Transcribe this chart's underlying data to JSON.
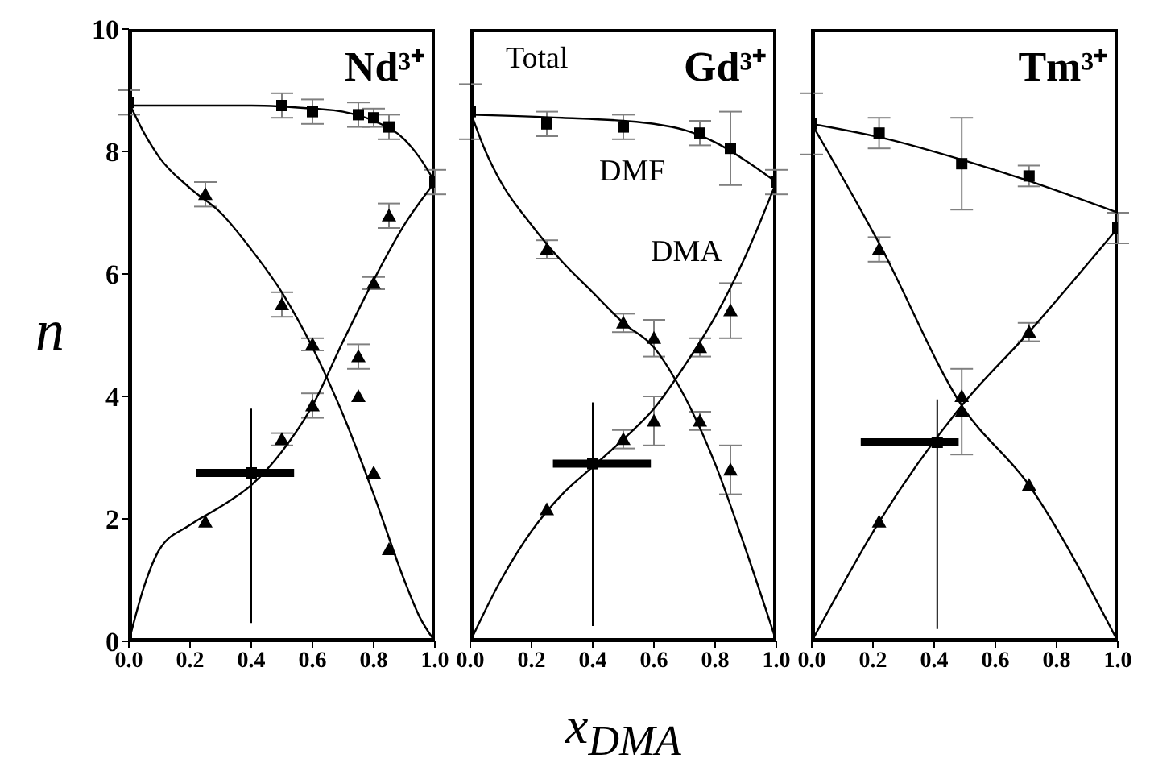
{
  "chart_data": [
    {
      "type": "scatter",
      "title": "Nd³⁺",
      "ylabel": "n",
      "xlim": [
        0,
        1
      ],
      "xticks": [
        {
          "value": 0,
          "label": "0.0"
        },
        {
          "value": 0.2,
          "label": "0.2"
        },
        {
          "value": 0.4,
          "label": "0.4"
        },
        {
          "value": 0.6,
          "label": "0.6"
        },
        {
          "value": 0.8,
          "label": "0.8"
        },
        {
          "value": 1,
          "label": "1.0"
        }
      ],
      "ylim": [
        0,
        10
      ],
      "yticks": [
        0,
        2,
        4,
        6,
        8,
        10
      ],
      "series": [
        {
          "color": "#000000",
          "marker": "square",
          "x": [
            0,
            0.5,
            0.6,
            0.75,
            0.8,
            0.85,
            1
          ],
          "values": [
            8.8,
            8.75,
            8.65,
            8.6,
            8.55,
            8.4,
            7.5
          ],
          "errors": [
            0.2,
            0.2,
            0.2,
            0.2,
            0.15,
            0.2,
            0.2
          ]
        },
        {
          "color": "#000000",
          "marker": "triangle",
          "x": [
            0.25,
            0.5,
            0.6,
            0.75,
            0.8,
            0.85
          ],
          "values": [
            7.3,
            5.5,
            4.85,
            4.0,
            2.75,
            1.5
          ],
          "errors": [
            0.2,
            0.2,
            0.1,
            null,
            null,
            null
          ]
        },
        {
          "color": "#000000",
          "marker": "triangle",
          "x": [
            0.25,
            0.5,
            0.6,
            0.75,
            0.8,
            0.85
          ],
          "values": [
            1.95,
            3.3,
            3.85,
            4.65,
            5.85,
            6.95
          ],
          "errors": [
            null,
            0.1,
            0.2,
            0.2,
            0.1,
            0.2
          ]
        },
        {
          "type": "line",
          "color": "#000000",
          "marker": "none",
          "x": [
            0,
            0.2,
            0.4,
            0.6,
            0.7,
            0.8,
            0.9,
            0.95,
            1
          ],
          "values": [
            8.75,
            8.75,
            8.75,
            8.7,
            8.65,
            8.5,
            8.2,
            7.9,
            7.5
          ]
        },
        {
          "type": "line",
          "color": "#000000",
          "marker": "none",
          "x": [
            0,
            0.05,
            0.1,
            0.2,
            0.3,
            0.4,
            0.5,
            0.6,
            0.7,
            0.8,
            0.9,
            0.95,
            1
          ],
          "values": [
            8.8,
            8.3,
            7.9,
            7.4,
            7.0,
            6.4,
            5.7,
            4.8,
            3.7,
            2.4,
            1.0,
            0.4,
            0
          ]
        },
        {
          "type": "line",
          "color": "#000000",
          "marker": "none",
          "x": [
            0,
            0.05,
            0.1,
            0.2,
            0.3,
            0.4,
            0.5,
            0.6,
            0.7,
            0.8,
            0.9,
            1
          ],
          "values": [
            0,
            0.9,
            1.5,
            1.9,
            2.2,
            2.55,
            3.1,
            3.85,
            4.9,
            5.9,
            6.8,
            7.5
          ]
        },
        {
          "color": "#000000",
          "marker": "square",
          "x": [
            0.4
          ],
          "values": [
            2.75
          ],
          "xerrors": [
            [
              0.22,
              0.54
            ]
          ],
          "errors": [
            [
              0.3,
              3.8
            ]
          ]
        }
      ]
    },
    {
      "type": "scatter",
      "title": "Gd³⁺",
      "xlabel": "x$_{DMA}$",
      "tick_labels": "x",
      "xlim": [
        0,
        1
      ],
      "xticks": [
        {
          "value": 0,
          "label": "0.0"
        },
        {
          "value": 0.2,
          "label": "0.2"
        },
        {
          "value": 0.4,
          "label": "0.4"
        },
        {
          "value": 0.6,
          "label": "0.6"
        },
        {
          "value": 0.8,
          "label": "0.8"
        },
        {
          "value": 1,
          "label": "1.0"
        }
      ],
      "ylim": [
        0,
        10
      ],
      "yticks": [
        0,
        2,
        4,
        6,
        8,
        10
      ],
      "annotations": [
        "Total",
        "DMF",
        "DMA"
      ],
      "series": [
        {
          "color": "#000000",
          "marker": "square",
          "x": [
            0,
            0.25,
            0.5,
            0.75,
            0.85,
            1
          ],
          "values": [
            8.65,
            8.45,
            8.4,
            8.3,
            8.05,
            7.5
          ],
          "errors": [
            0.45,
            0.2,
            0.2,
            0.2,
            0.6,
            0.2
          ]
        },
        {
          "color": "#000000",
          "marker": "triangle",
          "x": [
            0.25,
            0.5,
            0.6,
            0.75,
            0.85
          ],
          "values": [
            6.4,
            5.2,
            4.95,
            3.6,
            2.8
          ],
          "errors": [
            0.15,
            0.15,
            0.3,
            0.15,
            0.4
          ]
        },
        {
          "color": "#000000",
          "marker": "triangle",
          "x": [
            0.25,
            0.5,
            0.6,
            0.75,
            0.85
          ],
          "values": [
            2.15,
            3.3,
            3.6,
            4.8,
            5.4
          ],
          "errors": [
            null,
            0.15,
            0.4,
            0.15,
            0.45
          ]
        },
        {
          "type": "line",
          "color": "#000000",
          "marker": "none",
          "x": [
            0,
            0.3,
            0.5,
            0.6,
            0.7,
            0.8,
            0.9,
            1
          ],
          "values": [
            8.6,
            8.55,
            8.5,
            8.45,
            8.35,
            8.15,
            7.85,
            7.5
          ]
        },
        {
          "type": "line",
          "color": "#000000",
          "marker": "none",
          "x": [
            0,
            0.05,
            0.1,
            0.2,
            0.3,
            0.4,
            0.5,
            0.6,
            0.7,
            0.8,
            0.9,
            1
          ],
          "values": [
            8.65,
            8.0,
            7.5,
            6.8,
            6.2,
            5.7,
            5.2,
            4.8,
            4.0,
            2.9,
            1.5,
            0
          ]
        },
        {
          "type": "line",
          "color": "#000000",
          "marker": "none",
          "x": [
            0,
            0.1,
            0.2,
            0.3,
            0.4,
            0.5,
            0.6,
            0.7,
            0.8,
            0.9,
            1
          ],
          "values": [
            0,
            1.0,
            1.8,
            2.4,
            2.85,
            3.3,
            3.8,
            4.5,
            5.3,
            6.3,
            7.5
          ]
        },
        {
          "color": "#000000",
          "marker": "square",
          "x": [
            0.4
          ],
          "values": [
            2.9
          ],
          "xerrors": [
            [
              0.27,
              0.59
            ]
          ],
          "errors": [
            [
              0.25,
              3.9
            ]
          ]
        }
      ]
    },
    {
      "type": "scatter",
      "title": "Tm³⁺",
      "tick_labels": "x",
      "xlim": [
        0,
        1
      ],
      "xticks": [
        {
          "value": 0,
          "label": "0.0"
        },
        {
          "value": 0.2,
          "label": "0.2"
        },
        {
          "value": 0.4,
          "label": "0.4"
        },
        {
          "value": 0.6,
          "label": "0.6"
        },
        {
          "value": 0.8,
          "label": "0.8"
        },
        {
          "value": 1,
          "label": "1.0"
        }
      ],
      "ylim": [
        0,
        10
      ],
      "yticks": [
        0,
        2,
        4,
        6,
        8,
        10
      ],
      "series": [
        {
          "color": "#000000",
          "marker": "square",
          "x": [
            0,
            0.22,
            0.49,
            0.71,
            1
          ],
          "values": [
            8.45,
            8.3,
            7.8,
            7.6,
            6.75
          ],
          "errors": [
            0.5,
            0.25,
            0.75,
            0.17,
            0.25
          ]
        },
        {
          "color": "#000000",
          "marker": "triangle",
          "x": [
            0.22,
            0.49,
            0.71
          ],
          "values": [
            6.4,
            4.0,
            2.55
          ],
          "errors": [
            0.2,
            null,
            null
          ]
        },
        {
          "color": "#000000",
          "marker": "triangle",
          "x": [
            0.22,
            0.49,
            0.71
          ],
          "values": [
            1.95,
            3.75,
            5.05
          ],
          "errors": [
            null,
            0.7,
            0.15
          ]
        },
        {
          "type": "line",
          "color": "#000000",
          "marker": "none",
          "x": [
            0,
            0.25,
            0.5,
            0.75,
            1
          ],
          "values": [
            8.45,
            8.2,
            7.85,
            7.45,
            7.0
          ]
        },
        {
          "type": "line",
          "color": "#000000",
          "marker": "none",
          "x": [
            0,
            0.22,
            0.49,
            0.71,
            1
          ],
          "values": [
            8.45,
            6.5,
            3.85,
            2.55,
            0
          ]
        },
        {
          "type": "line",
          "color": "#000000",
          "marker": "none",
          "x": [
            0,
            0.22,
            0.49,
            0.71,
            1
          ],
          "values": [
            0,
            1.95,
            3.85,
            5.05,
            6.75
          ]
        },
        {
          "color": "#000000",
          "marker": "square",
          "x": [
            0.41
          ],
          "values": [
            3.25
          ],
          "xerrors": [
            [
              0.16,
              0.48
            ]
          ],
          "errors": [
            [
              0.2,
              3.95
            ]
          ]
        }
      ]
    }
  ]
}
